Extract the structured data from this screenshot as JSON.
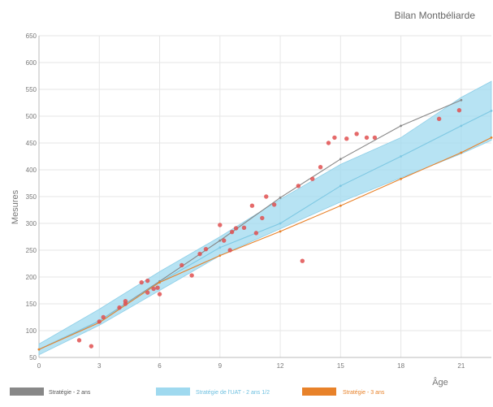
{
  "chart_data": {
    "type": "line",
    "title": "Bilan Montbéliarde",
    "xlabel": "Âge",
    "ylabel": "Mesures",
    "xlim": [
      0,
      22.5
    ],
    "ylim": [
      50,
      650
    ],
    "x_ticks": [
      0,
      3,
      6,
      9,
      12,
      15,
      18,
      21
    ],
    "x_tick_labels": [
      "0",
      "3",
      "6",
      "9",
      "12",
      "15",
      "18",
      "21"
    ],
    "y_ticks": [
      50,
      100,
      150,
      200,
      250,
      300,
      350,
      400,
      450,
      500,
      550,
      600,
      650
    ],
    "y_tick_labels": [
      "50",
      "100",
      "150",
      "200",
      "250",
      "300",
      "350",
      "400",
      "450",
      "500",
      "550",
      "600",
      "650"
    ],
    "grid": true,
    "legend_position": "bottom",
    "band": {
      "name": "Stratégie de l'UAT - 2 ans 1/2",
      "color": "#9fd9ef",
      "x": [
        0,
        3,
        6,
        9,
        12,
        15,
        18,
        21,
        22.5
      ],
      "lower": [
        55,
        110,
        175,
        240,
        290,
        340,
        385,
        430,
        455
      ],
      "upper": [
        75,
        140,
        210,
        275,
        345,
        410,
        460,
        535,
        565
      ]
    },
    "series": [
      {
        "name": "Stratégie - 2 ans",
        "color": "#888888",
        "x": [
          0,
          3,
          6,
          9,
          12,
          15,
          18,
          21
        ],
        "values": [
          65,
          118,
          192,
          268,
          348,
          420,
          482,
          530
        ]
      },
      {
        "name": "Stratégie de l'UAT - 2 ans 1/2",
        "color": "#7ec8e3",
        "x": [
          0,
          3,
          6,
          9,
          12,
          15,
          18,
          21,
          22.5
        ],
        "values": [
          65,
          118,
          190,
          255,
          300,
          370,
          425,
          482,
          510
        ]
      },
      {
        "name": "Stratégie - 3 ans",
        "color": "#e8822a",
        "x": [
          0,
          3,
          6,
          9,
          12,
          15,
          18,
          21,
          22.5
        ],
        "values": [
          65,
          115,
          190,
          240,
          285,
          333,
          383,
          432,
          460
        ]
      }
    ],
    "observations": {
      "color": "#e05050",
      "points": [
        [
          2,
          82
        ],
        [
          2.6,
          71
        ],
        [
          3,
          117
        ],
        [
          3.2,
          125
        ],
        [
          4,
          143
        ],
        [
          4.3,
          150
        ],
        [
          4.3,
          155
        ],
        [
          5.1,
          190
        ],
        [
          5.4,
          171
        ],
        [
          5.4,
          193
        ],
        [
          5.7,
          178
        ],
        [
          5.9,
          180
        ],
        [
          6,
          168
        ],
        [
          7.1,
          222
        ],
        [
          7.6,
          203
        ],
        [
          8,
          243
        ],
        [
          8.3,
          252
        ],
        [
          9,
          297
        ],
        [
          9.2,
          268
        ],
        [
          9.5,
          250
        ],
        [
          9.6,
          284
        ],
        [
          9.8,
          291
        ],
        [
          10.2,
          292
        ],
        [
          10.6,
          333
        ],
        [
          10.8,
          282
        ],
        [
          11.1,
          310
        ],
        [
          11.3,
          350
        ],
        [
          11.7,
          335
        ],
        [
          12.9,
          370
        ],
        [
          13.1,
          230
        ],
        [
          13.6,
          383
        ],
        [
          14,
          405
        ],
        [
          14.4,
          450
        ],
        [
          14.7,
          460
        ],
        [
          15.3,
          458
        ],
        [
          15.8,
          467
        ],
        [
          16.3,
          460
        ],
        [
          16.7,
          460
        ],
        [
          19.9,
          495
        ],
        [
          20.9,
          511
        ]
      ]
    }
  }
}
